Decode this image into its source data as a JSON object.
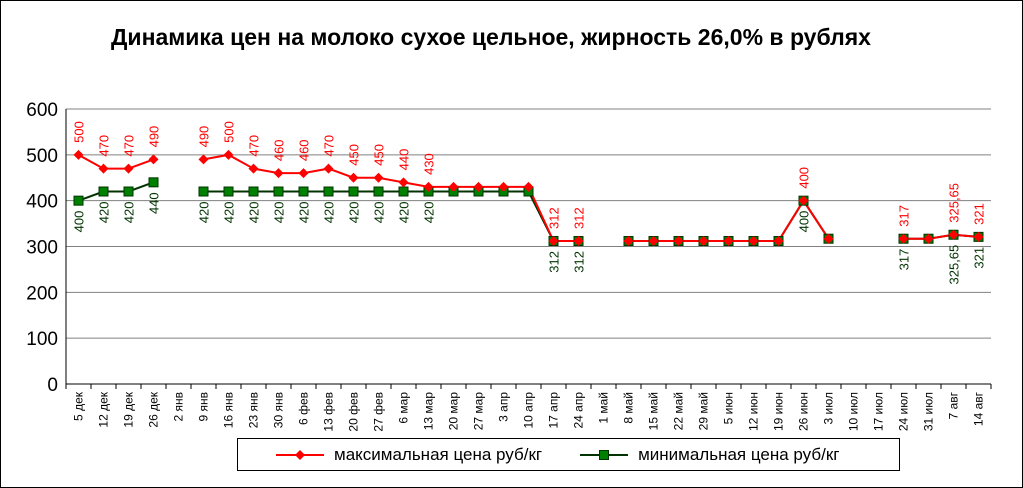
{
  "chart_data": {
    "type": "line",
    "title": "Динамика цен на молоко сухое цельное, жирность 26,0%  в рублях",
    "ylim": [
      0,
      600
    ],
    "yticks": [
      0,
      100,
      200,
      300,
      400,
      500,
      600
    ],
    "grid": true,
    "legend_position": "bottom",
    "categories": [
      "5 дек",
      "12 дек",
      "19 дек",
      "26 дек",
      "2 янв",
      "9 янв",
      "16 янв",
      "23 янв",
      "30 янв",
      "6 фев",
      "13 фев",
      "20 фев",
      "27 фев",
      "6 мар",
      "13 мар",
      "20 мар",
      "27 мар",
      "3 апр",
      "10 апр",
      "17 апр",
      "24 апр",
      "1 май",
      "8 май",
      "15 май",
      "22 май",
      "29 май",
      "5 июн",
      "12 июн",
      "19 июн",
      "26 июн",
      "3 июл",
      "10 июл",
      "17 июл",
      "24 июл",
      "31 июл",
      "7 авг",
      "14 авг"
    ],
    "series": [
      {
        "name": "максимальная цена руб/кг",
        "color": "#ff0000",
        "marker": "diamond",
        "values": [
          500,
          470,
          470,
          490,
          null,
          490,
          500,
          470,
          460,
          460,
          470,
          450,
          450,
          440,
          430,
          430,
          430,
          430,
          430,
          312,
          312,
          null,
          312,
          312,
          312,
          312,
          312,
          312,
          312,
          400,
          317,
          null,
          null,
          317,
          317,
          325.65,
          321
        ],
        "labels": [
          "500",
          "470",
          "470",
          "490",
          null,
          "490",
          "500",
          "470",
          "460",
          "460",
          "470",
          "450",
          "450",
          "440",
          "430",
          null,
          null,
          null,
          null,
          "312",
          "312",
          null,
          null,
          null,
          null,
          null,
          null,
          null,
          null,
          "400",
          null,
          null,
          null,
          "317",
          null,
          "325,65",
          "321"
        ]
      },
      {
        "name": "минимальная цена руб/кг",
        "color": "#003300",
        "marker": "square",
        "values": [
          400,
          420,
          420,
          440,
          null,
          420,
          420,
          420,
          420,
          420,
          420,
          420,
          420,
          420,
          420,
          420,
          420,
          420,
          420,
          312,
          312,
          null,
          312,
          312,
          312,
          312,
          312,
          312,
          312,
          400,
          317,
          null,
          null,
          317,
          317,
          325.65,
          321
        ],
        "labels": [
          "400",
          "420",
          "420",
          "440",
          null,
          "420",
          "420",
          "420",
          "420",
          "420",
          "420",
          "420",
          "420",
          "420",
          "420",
          null,
          null,
          null,
          null,
          "312",
          "312",
          null,
          null,
          null,
          null,
          null,
          null,
          null,
          null,
          "400",
          null,
          null,
          null,
          "317",
          null,
          "325,65",
          "321"
        ]
      }
    ]
  }
}
